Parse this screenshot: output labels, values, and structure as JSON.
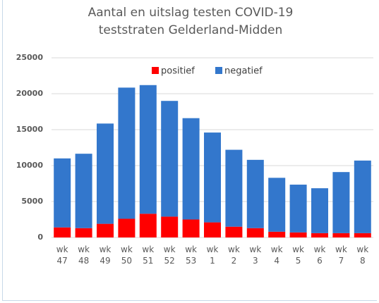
{
  "chart_data": {
    "type": "stacked_bar",
    "title": [
      "Aantal en uitslag testen COVID-19",
      "teststraten Gelderland-Midden"
    ],
    "categories": [
      "wk 47",
      "wk 48",
      "wk 49",
      "wk 50",
      "wk 51",
      "wk 52",
      "wk 53",
      "wk 1",
      "wk 2",
      "wk 3",
      "wk 4",
      "wk 5",
      "wk 6",
      "wk 7",
      "wk 8"
    ],
    "series": [
      {
        "name": "positief",
        "color": "#ff0000",
        "values": [
          1400,
          1300,
          1900,
          2600,
          3300,
          2900,
          2500,
          2100,
          1500,
          1300,
          800,
          700,
          600,
          600,
          600
        ]
      },
      {
        "name": "negatief",
        "color": "#3377cc",
        "values": [
          9600,
          10350,
          13950,
          18250,
          17900,
          16100,
          14100,
          12500,
          10700,
          9500,
          7500,
          6650,
          6250,
          8500,
          10100
        ]
      }
    ],
    "ylim": [
      0,
      25000
    ],
    "yticks": [
      0,
      5000,
      10000,
      15000,
      20000,
      25000
    ],
    "grid": true,
    "legend": "top"
  }
}
